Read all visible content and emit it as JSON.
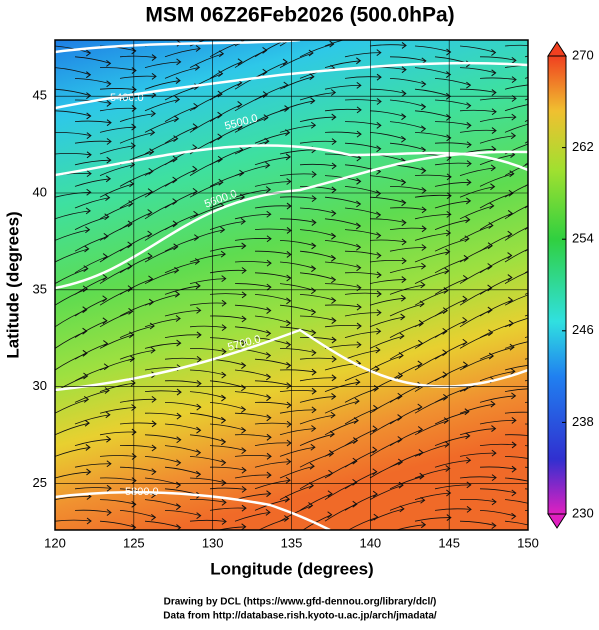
{
  "chart_data": {
    "type": "map",
    "title": "MSM 06Z26Feb2026 (500.0hPa)",
    "x_label": "Longitude (degrees)",
    "y_label": "Latitude  (degrees)",
    "xlim": [
      120,
      150
    ],
    "xticks": [
      120,
      125,
      130,
      135,
      140,
      145,
      150
    ],
    "ylim": [
      22.6,
      47.9
    ],
    "yticks": [
      25,
      30,
      35,
      40,
      45
    ],
    "colorbar": {
      "lim": [
        230,
        270
      ],
      "ticks": [
        230,
        238,
        246,
        254,
        262,
        270
      ]
    },
    "contours": [
      {
        "value": 5400,
        "label": "5400.0"
      },
      {
        "value": 5500,
        "label": "5500.0"
      },
      {
        "value": 5600,
        "label": "5600.0"
      },
      {
        "value": 5700,
        "label": "5700.0"
      },
      {
        "value": 5800,
        "label": "5800.0"
      }
    ],
    "footer": [
      "Drawing by DCL (https://www.gfd-dennou.org/library/dcl/)",
      "Data from http://database.rish.kyoto-u.ac.jp/arch/jmadata/"
    ]
  }
}
